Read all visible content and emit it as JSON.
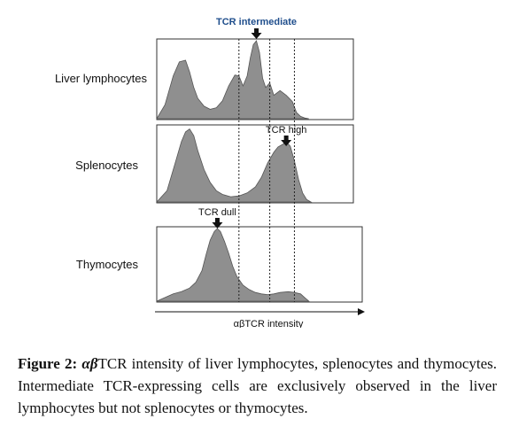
{
  "chart_data": {
    "type": "area",
    "x_axis": {
      "label": "αβTCR intensity",
      "domain": [
        0,
        100
      ],
      "gates": [
        40,
        55,
        67
      ]
    },
    "panels": [
      {
        "label": "Liver lymphocytes",
        "annotation": {
          "text": "TCR intermediate",
          "x": 48.5
        },
        "y_domain": [
          0,
          100
        ],
        "x": [
          0,
          4,
          8,
          11,
          14,
          16,
          18,
          20,
          23,
          26,
          29,
          32,
          35,
          38,
          40,
          42,
          44,
          45.5,
          47,
          48.5,
          50,
          51.5,
          53,
          55,
          57,
          60,
          63,
          66,
          68,
          70,
          72,
          74
        ],
        "values": [
          0,
          18,
          55,
          73,
          75,
          60,
          40,
          26,
          16,
          12,
          14,
          23,
          42,
          56,
          55,
          42,
          55,
          78,
          95,
          100,
          85,
          52,
          40,
          46,
          30,
          36,
          30,
          22,
          8,
          3,
          1,
          0
        ]
      },
      {
        "label": "Splenocytes",
        "annotation": {
          "text": "TCR high",
          "x": 63
        },
        "y_domain": [
          0,
          100
        ],
        "x": [
          0,
          5,
          9,
          12,
          14,
          16,
          18,
          20,
          23,
          26,
          29,
          32,
          36,
          40,
          44,
          48,
          51,
          54,
          57,
          59,
          61,
          63,
          65,
          67,
          69,
          71,
          73,
          75
        ],
        "values": [
          0,
          15,
          52,
          80,
          93,
          97,
          88,
          68,
          43,
          26,
          15,
          10,
          7,
          8,
          12,
          20,
          33,
          52,
          66,
          73,
          76,
          80,
          74,
          55,
          30,
          12,
          3,
          0
        ]
      },
      {
        "label": "Thymocytes",
        "annotation": {
          "text": "TCR dull",
          "x": 29.5
        },
        "y_domain": [
          0,
          100
        ],
        "x": [
          0,
          4,
          8,
          12,
          16,
          19,
          22,
          24,
          26,
          28,
          29.5,
          31,
          33,
          35,
          37,
          39,
          42,
          45,
          48,
          51,
          54,
          57,
          60,
          64,
          67,
          70,
          72,
          74
        ],
        "values": [
          0,
          5,
          10,
          13,
          18,
          26,
          42,
          64,
          84,
          96,
          100,
          96,
          82,
          66,
          48,
          34,
          22,
          16,
          12,
          10,
          9,
          10,
          12,
          13,
          12,
          10,
          5,
          0
        ]
      }
    ]
  },
  "caption": {
    "lead": "Figure 2:",
    "greek": "αβ",
    "body": "TCR intensity of liver lymphocytes, splenocytes and thymocytes. Intermediate TCR-expressing cells are exclusively observed in the liver lymphocytes but not splenocytes or thymocytes."
  },
  "colors": {
    "fill": "#8f8f8f",
    "stroke": "#555555",
    "accent": "#1f4e8c"
  }
}
